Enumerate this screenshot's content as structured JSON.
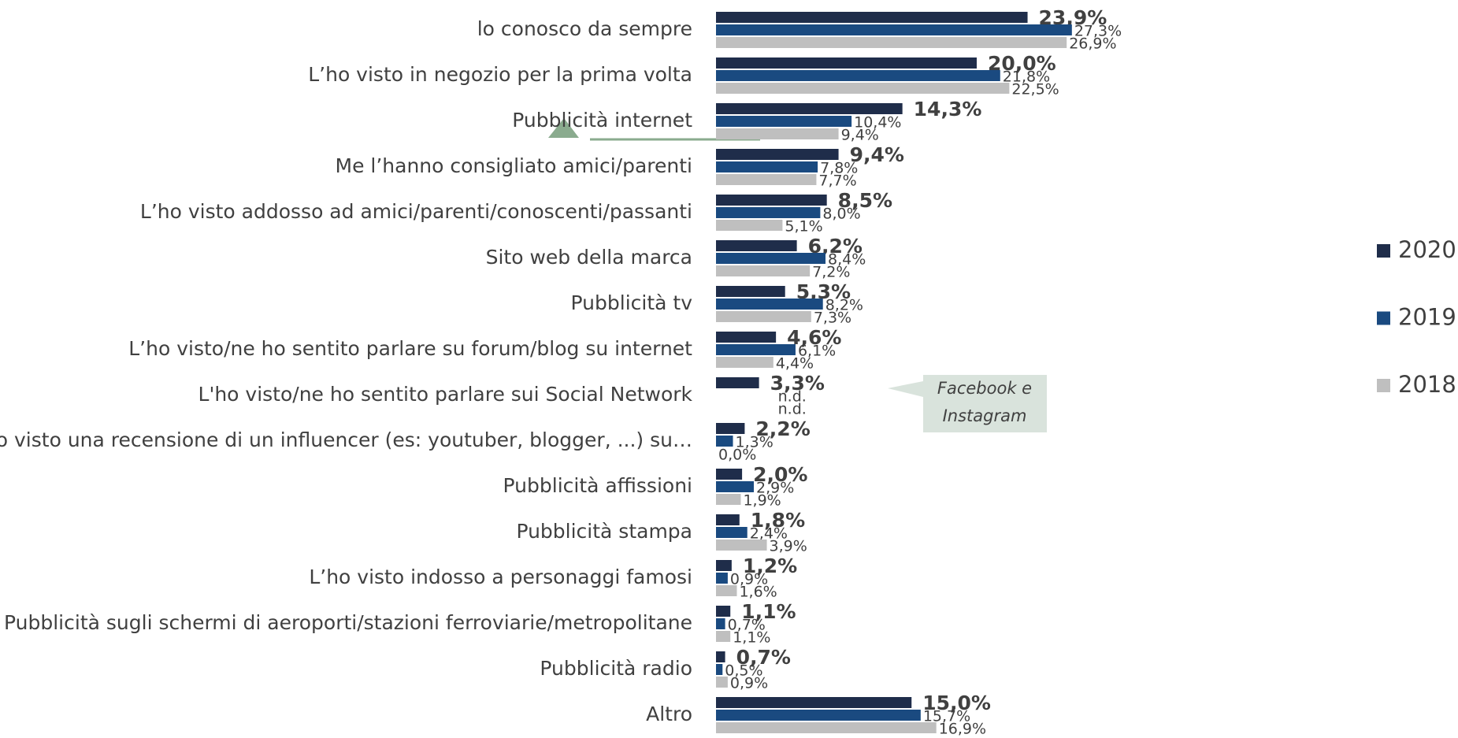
{
  "chart_data": {
    "type": "hbar",
    "categories": [
      "lo conosco da sempre",
      "L’ho visto in negozio per la prima volta",
      "Pubblicità internet",
      "Me l’hanno consigliato amici/parenti",
      "L’ho visto addosso ad amici/parenti/conoscenti/passanti",
      "Sito web della marca",
      "Pubblicità tv",
      "L’ho visto/ne ho sentito parlare su forum/blog su internet",
      "L'ho visto/ne ho sentito parlare sui Social Network",
      "Ho visto una recensione di un influencer (es: youtuber, blogger, ...) su…",
      "Pubblicità affissioni",
      "Pubblicità stampa",
      "L’ho visto indosso a personaggi famosi",
      "Pubblicità sugli schermi di aeroporti/stazioni ferroviarie/metropolitane",
      "Pubblicità radio",
      "Altro"
    ],
    "series": [
      {
        "name": "2020",
        "color": "#1f2d4a",
        "values": [
          23.9,
          20.0,
          14.3,
          9.4,
          8.5,
          6.2,
          5.3,
          4.6,
          3.3,
          2.2,
          2.0,
          1.8,
          1.2,
          1.1,
          0.7,
          15.0
        ],
        "value_labels": [
          "23,9%",
          "20,0%",
          "14,3%",
          "9,4%",
          "8,5%",
          "6,2%",
          "5,3%",
          "4,6%",
          "3,3%",
          "2,2%",
          "2,0%",
          "1,8%",
          "1,2%",
          "1,1%",
          "0,7%",
          "15,0%"
        ]
      },
      {
        "name": "2019",
        "color": "#1a4a80",
        "values": [
          27.3,
          21.8,
          10.4,
          7.8,
          8.0,
          8.4,
          8.2,
          6.1,
          null,
          1.3,
          2.9,
          2.4,
          0.9,
          0.7,
          0.5,
          15.7
        ],
        "value_labels": [
          "27,3%",
          "21,8%",
          "10,4%",
          "7,8%",
          "8,0%",
          "8,4%",
          "8,2%",
          "6,1%",
          "n.d.",
          "1,3%",
          "2,9%",
          "2,4%",
          "0,9%",
          "0,7%",
          "0,5%",
          "15,7%"
        ]
      },
      {
        "name": "2018",
        "color": "#bfbfbf",
        "values": [
          26.9,
          22.5,
          9.4,
          7.7,
          5.1,
          7.2,
          7.3,
          4.4,
          null,
          0.0,
          1.9,
          3.9,
          1.6,
          1.1,
          0.9,
          16.9
        ],
        "value_labels": [
          "26,9%",
          "22,5%",
          "9,4%",
          "7,7%",
          "5,1%",
          "7,2%",
          "7,3%",
          "4,4%",
          "n.d.",
          "0,0%",
          "1,9%",
          "3,9%",
          "1,6%",
          "1,1%",
          "0,9%",
          "16,9%"
        ]
      }
    ],
    "annotation": [
      "Facebook e",
      "Instagram"
    ]
  }
}
